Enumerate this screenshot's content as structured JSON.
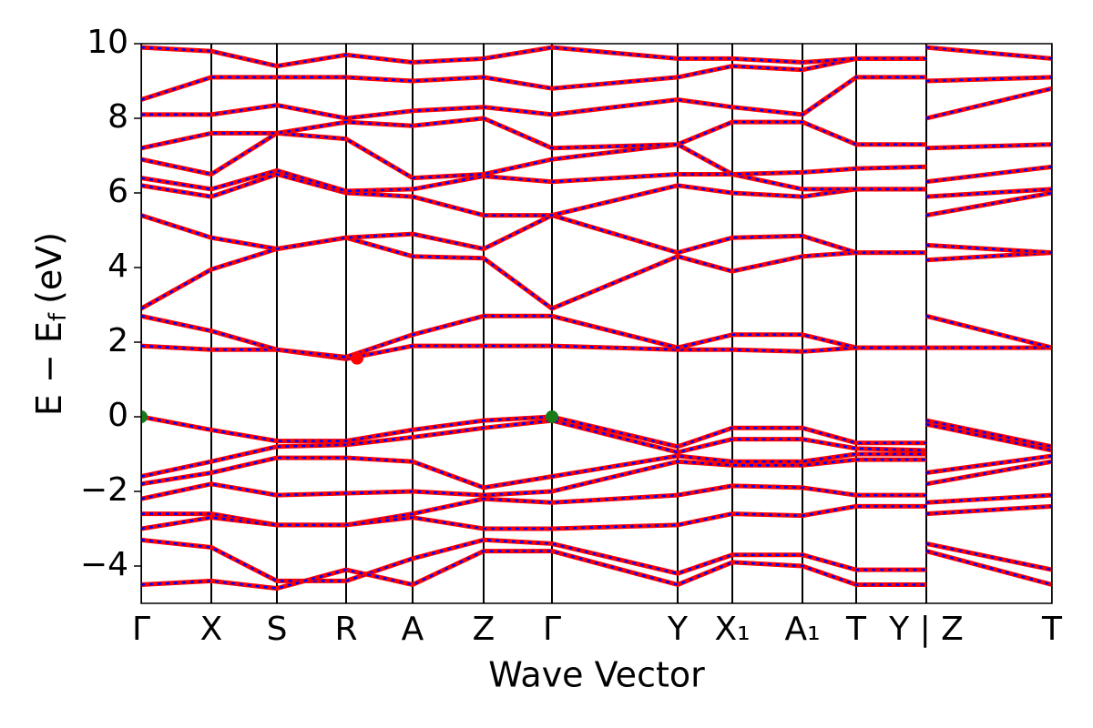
{
  "chart_data": {
    "type": "line",
    "xlabel": "Wave Vector",
    "ylabel": {
      "main": "E − E",
      "sub": "f",
      "unit": "(eV)"
    },
    "xlim": [
      0,
      1
    ],
    "ylim": [
      -5,
      10
    ],
    "yticks": [
      {
        "value": -4,
        "label": "−4"
      },
      {
        "value": -2,
        "label": "−2"
      },
      0,
      2,
      4,
      6,
      8,
      10
    ],
    "xticks": [
      {
        "value": 0,
        "label": "Γ"
      },
      {
        "value": 0.077,
        "label": "X"
      },
      {
        "value": 0.149,
        "label": "S"
      },
      {
        "value": 0.225,
        "label": "R"
      },
      {
        "value": 0.298,
        "label": "A"
      },
      {
        "value": 0.376,
        "label": "Z"
      },
      {
        "value": 0.451,
        "label": "Γ"
      },
      {
        "value": 0.589,
        "label": "Y"
      },
      {
        "value": 0.649,
        "label": "X₁"
      },
      {
        "value": 0.726,
        "label": "A₁"
      },
      {
        "value": 0.785,
        "label": "T"
      },
      {
        "value": 0.862,
        "label": "Y | Z"
      },
      {
        "value": 1.0,
        "label": "T"
      }
    ],
    "grid": true,
    "overlay_color": "#0000ff",
    "overlay_dash": true,
    "x": [
      0,
      0.077,
      0.149,
      0.225,
      0.298,
      0.376,
      0.451,
      0.589,
      0.649,
      0.726,
      0.785,
      0.862,
      0.862,
      0.862,
      1.0
    ],
    "series": [
      {
        "color": "#ff0000",
        "values": [
          0,
          -0.35,
          -0.65,
          -0.65,
          -0.35,
          -0.1,
          0,
          -0.8,
          -0.3,
          -0.3,
          -0.7,
          -0.7,
          null,
          -0.1,
          -0.8
        ]
      },
      {
        "color": "#ff0000",
        "values": [
          -1.6,
          -1.2,
          -0.8,
          -0.75,
          -0.55,
          -0.3,
          -0.1,
          -0.95,
          -0.6,
          -0.6,
          -0.85,
          -0.9,
          null,
          -0.2,
          -0.9
        ]
      },
      {
        "color": "#ff0000",
        "values": [
          -1.8,
          -1.5,
          -1.1,
          -1.1,
          -1.2,
          -1.9,
          -1.6,
          -1.05,
          -1.2,
          -1.2,
          -1.0,
          -1.0,
          null,
          -1.5,
          -1.05
        ]
      },
      {
        "color": "#ff0000",
        "values": [
          -2.2,
          -1.8,
          -2.1,
          -2.05,
          -2.0,
          -2.1,
          -2.0,
          -1.2,
          -1.3,
          -1.3,
          -1.15,
          -1.15,
          null,
          -1.8,
          -1.2
        ]
      },
      {
        "color": "#ff0000",
        "values": [
          -2.6,
          -2.6,
          -2.9,
          -2.9,
          -2.6,
          -2.2,
          -2.3,
          -2.1,
          -1.85,
          -1.9,
          -2.1,
          -2.1,
          null,
          -2.3,
          -2.1
        ]
      },
      {
        "color": "#ff0000",
        "values": [
          -3.0,
          -2.7,
          -2.9,
          -2.9,
          -2.7,
          -3.0,
          -3.0,
          -2.9,
          -2.6,
          -2.65,
          -2.4,
          -2.4,
          null,
          -2.6,
          -2.4
        ]
      },
      {
        "color": "#ff0000",
        "values": [
          -3.3,
          -3.5,
          -4.4,
          -4.4,
          -3.8,
          -3.3,
          -3.4,
          -4.2,
          -3.7,
          -3.7,
          -4.1,
          -4.1,
          null,
          -3.4,
          -4.1
        ]
      },
      {
        "color": "#ff0000",
        "values": [
          -4.5,
          -4.4,
          -4.6,
          -4.1,
          -4.5,
          -3.6,
          -3.6,
          -4.5,
          -3.9,
          -4.0,
          -4.5,
          -4.5,
          null,
          -3.6,
          -4.5
        ]
      },
      {
        "color": "#ff0000",
        "values": [
          1.9,
          1.8,
          1.8,
          1.55,
          1.9,
          1.9,
          1.9,
          1.8,
          1.8,
          1.75,
          1.85,
          1.85,
          null,
          1.85,
          1.85
        ]
      },
      {
        "color": "#ff0000",
        "values": [
          2.7,
          2.3,
          1.8,
          1.6,
          2.2,
          2.7,
          2.7,
          1.85,
          2.2,
          2.2,
          1.85,
          1.85,
          null,
          2.7,
          1.85
        ]
      },
      {
        "color": "#ff0000",
        "values": [
          2.9,
          3.95,
          4.5,
          4.8,
          4.3,
          4.25,
          2.9,
          4.3,
          3.9,
          4.3,
          4.4,
          4.4,
          null,
          4.2,
          4.4
        ]
      },
      {
        "color": "#ff0000",
        "values": [
          5.4,
          4.8,
          4.5,
          4.8,
          4.9,
          4.5,
          5.4,
          4.4,
          4.8,
          4.85,
          4.4,
          4.4,
          null,
          4.6,
          4.4
        ]
      },
      {
        "color": "#ff0000",
        "values": [
          6.2,
          5.9,
          6.5,
          6.0,
          5.9,
          5.4,
          5.4,
          6.2,
          6.0,
          5.9,
          6.1,
          6.1,
          null,
          5.4,
          6.0
        ]
      },
      {
        "color": "#ff0000",
        "values": [
          6.4,
          6.1,
          6.6,
          6.05,
          6.1,
          6.45,
          6.3,
          6.5,
          6.5,
          6.1,
          6.1,
          6.1,
          null,
          5.9,
          6.1
        ]
      },
      {
        "color": "#ff0000",
        "values": [
          6.9,
          6.5,
          7.6,
          7.45,
          6.4,
          6.5,
          6.9,
          7.3,
          6.5,
          6.55,
          6.65,
          6.7,
          null,
          6.3,
          6.7
        ]
      },
      {
        "color": "#ff0000",
        "values": [
          7.2,
          7.6,
          7.6,
          7.9,
          7.8,
          8.0,
          7.2,
          7.3,
          7.9,
          7.9,
          7.3,
          7.3,
          null,
          7.2,
          7.3
        ]
      },
      {
        "color": "#ff0000",
        "values": [
          8.1,
          8.1,
          8.35,
          8.0,
          8.2,
          8.3,
          8.1,
          8.5,
          8.3,
          8.1,
          9.1,
          9.1,
          null,
          8.0,
          8.8
        ]
      },
      {
        "color": "#ff0000",
        "values": [
          8.5,
          9.1,
          9.1,
          9.1,
          9.0,
          9.1,
          8.8,
          9.1,
          9.4,
          9.3,
          9.6,
          9.6,
          null,
          9.0,
          9.1
        ]
      },
      {
        "color": "#ff0000",
        "values": [
          9.9,
          9.8,
          9.4,
          9.7,
          9.5,
          9.6,
          9.9,
          9.6,
          9.6,
          9.5,
          9.6,
          9.6,
          null,
          9.9,
          9.6
        ]
      }
    ],
    "markers": {
      "x": [
        0,
        0.451,
        0.237
      ],
      "values": [
        0,
        0,
        1.57
      ],
      "colors": [
        "#1a7a1a",
        "#1a7a1a",
        "#ff0000"
      ]
    }
  }
}
